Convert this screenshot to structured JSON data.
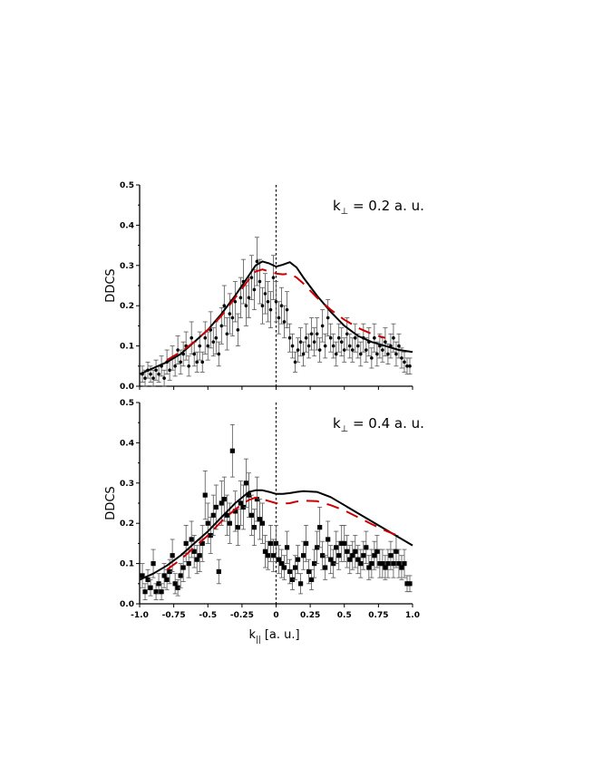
{
  "chart_data": [
    {
      "type": "scatter",
      "annotation": {
        "main": "k",
        "sub": "⊥",
        "rest": " = 0.2 a. u."
      },
      "ylabel": "DDCS",
      "xlim": [
        -1.0,
        1.0
      ],
      "ylim": [
        0.0,
        0.5
      ],
      "yticks": [
        "0.0",
        "0.1",
        "0.2",
        "0.3",
        "0.4",
        "0.5"
      ],
      "colors": {
        "experiment": "#000000",
        "solid": "#000000",
        "dashed": "#cc0000"
      },
      "series": [
        {
          "kind": "points",
          "marker": "circle",
          "x": [
            -0.98,
            -0.96,
            -0.94,
            -0.92,
            -0.9,
            -0.88,
            -0.86,
            -0.84,
            -0.82,
            -0.8,
            -0.78,
            -0.76,
            -0.74,
            -0.72,
            -0.7,
            -0.68,
            -0.66,
            -0.64,
            -0.62,
            -0.6,
            -0.58,
            -0.56,
            -0.54,
            -0.52,
            -0.5,
            -0.48,
            -0.46,
            -0.44,
            -0.42,
            -0.4,
            -0.38,
            -0.36,
            -0.34,
            -0.32,
            -0.3,
            -0.28,
            -0.26,
            -0.24,
            -0.22,
            -0.2,
            -0.18,
            -0.16,
            -0.14,
            -0.12,
            -0.1,
            -0.08,
            -0.06,
            -0.04,
            -0.02,
            0.0,
            0.02,
            0.04,
            0.06,
            0.08,
            0.1,
            0.12,
            0.14,
            0.16,
            0.18,
            0.2,
            0.22,
            0.24,
            0.26,
            0.28,
            0.3,
            0.32,
            0.34,
            0.36,
            0.38,
            0.4,
            0.42,
            0.44,
            0.46,
            0.48,
            0.5,
            0.52,
            0.54,
            0.56,
            0.58,
            0.6,
            0.62,
            0.64,
            0.66,
            0.68,
            0.7,
            0.72,
            0.74,
            0.76,
            0.78,
            0.8,
            0.82,
            0.84,
            0.86,
            0.88,
            0.9,
            0.92,
            0.94,
            0.96,
            0.98
          ],
          "y": [
            0.03,
            0.02,
            0.04,
            0.03,
            0.02,
            0.04,
            0.03,
            0.05,
            0.02,
            0.06,
            0.04,
            0.07,
            0.05,
            0.09,
            0.06,
            0.08,
            0.1,
            0.05,
            0.12,
            0.08,
            0.06,
            0.1,
            0.06,
            0.12,
            0.1,
            0.14,
            0.11,
            0.12,
            0.08,
            0.15,
            0.2,
            0.13,
            0.18,
            0.17,
            0.21,
            0.14,
            0.22,
            0.26,
            0.2,
            0.22,
            0.27,
            0.24,
            0.31,
            0.26,
            0.2,
            0.23,
            0.21,
            0.19,
            0.27,
            0.21,
            0.17,
            0.2,
            0.16,
            0.19,
            0.12,
            0.1,
            0.06,
            0.09,
            0.11,
            0.08,
            0.12,
            0.1,
            0.13,
            0.11,
            0.13,
            0.09,
            0.15,
            0.1,
            0.17,
            0.12,
            0.1,
            0.08,
            0.12,
            0.11,
            0.09,
            0.13,
            0.1,
            0.09,
            0.12,
            0.1,
            0.08,
            0.12,
            0.09,
            0.11,
            0.07,
            0.12,
            0.08,
            0.1,
            0.09,
            0.11,
            0.08,
            0.1,
            0.12,
            0.08,
            0.1,
            0.07,
            0.06,
            0.05,
            0.05
          ],
          "err": [
            0.02,
            0.02,
            0.02,
            0.02,
            0.02,
            0.025,
            0.02,
            0.025,
            0.02,
            0.03,
            0.025,
            0.03,
            0.025,
            0.035,
            0.03,
            0.03,
            0.035,
            0.025,
            0.04,
            0.03,
            0.025,
            0.035,
            0.025,
            0.04,
            0.035,
            0.045,
            0.035,
            0.04,
            0.03,
            0.045,
            0.05,
            0.04,
            0.05,
            0.045,
            0.05,
            0.04,
            0.05,
            0.055,
            0.05,
            0.05,
            0.055,
            0.05,
            0.06,
            0.055,
            0.045,
            0.05,
            0.05,
            0.045,
            0.055,
            0.05,
            0.04,
            0.045,
            0.04,
            0.045,
            0.035,
            0.03,
            0.025,
            0.03,
            0.035,
            0.03,
            0.035,
            0.03,
            0.04,
            0.035,
            0.04,
            0.03,
            0.04,
            0.03,
            0.045,
            0.035,
            0.03,
            0.03,
            0.035,
            0.035,
            0.03,
            0.04,
            0.03,
            0.03,
            0.035,
            0.03,
            0.03,
            0.035,
            0.03,
            0.035,
            0.025,
            0.035,
            0.03,
            0.03,
            0.03,
            0.035,
            0.025,
            0.03,
            0.035,
            0.03,
            0.03,
            0.025,
            0.025,
            0.02,
            0.02
          ]
        },
        {
          "kind": "line",
          "style": "solid",
          "x": [
            -1.0,
            -0.9,
            -0.8,
            -0.7,
            -0.6,
            -0.5,
            -0.4,
            -0.3,
            -0.2,
            -0.15,
            -0.1,
            -0.05,
            0.0,
            0.05,
            0.1,
            0.15,
            0.2,
            0.3,
            0.4,
            0.5,
            0.6,
            0.7,
            0.8,
            0.9,
            1.0
          ],
          "y": [
            0.03,
            0.045,
            0.06,
            0.08,
            0.11,
            0.14,
            0.18,
            0.225,
            0.275,
            0.3,
            0.31,
            0.305,
            0.297,
            0.302,
            0.308,
            0.295,
            0.27,
            0.225,
            0.185,
            0.15,
            0.125,
            0.11,
            0.1,
            0.09,
            0.085
          ]
        },
        {
          "kind": "line",
          "style": "dashed",
          "x": [
            -0.8,
            -0.7,
            -0.6,
            -0.5,
            -0.4,
            -0.3,
            -0.2,
            -0.15,
            -0.1,
            -0.05,
            0.0,
            0.05,
            0.1,
            0.15,
            0.2,
            0.3,
            0.4,
            0.5,
            0.6,
            0.7,
            0.8
          ],
          "y": [
            0.065,
            0.085,
            0.11,
            0.14,
            0.175,
            0.22,
            0.265,
            0.285,
            0.29,
            0.285,
            0.28,
            0.278,
            0.28,
            0.27,
            0.255,
            0.22,
            0.19,
            0.165,
            0.145,
            0.13,
            0.12
          ]
        }
      ]
    },
    {
      "type": "scatter",
      "annotation": {
        "main": "k",
        "sub": "⊥",
        "rest": " = 0.4 a. u."
      },
      "ylabel": "DDCS",
      "xlabel": {
        "main": "k",
        "sub": "||",
        "rest": " [a. u.]"
      },
      "xlim": [
        -1.0,
        1.0
      ],
      "ylim": [
        0.0,
        0.5
      ],
      "xticks": [
        "-1.0",
        "-0.75",
        "-0.5",
        "-0.25",
        "0",
        "0.25",
        "0.5",
        "0.75",
        "1.0"
      ],
      "yticks": [
        "0.0",
        "0.1",
        "0.2",
        "0.3",
        "0.4",
        "0.5"
      ],
      "colors": {
        "experiment": "#000000",
        "solid": "#000000",
        "dashed": "#cc0000"
      },
      "series": [
        {
          "kind": "points",
          "marker": "square",
          "x": [
            -0.98,
            -0.96,
            -0.94,
            -0.92,
            -0.9,
            -0.88,
            -0.86,
            -0.84,
            -0.82,
            -0.8,
            -0.78,
            -0.76,
            -0.74,
            -0.72,
            -0.7,
            -0.68,
            -0.66,
            -0.64,
            -0.62,
            -0.6,
            -0.58,
            -0.56,
            -0.54,
            -0.52,
            -0.5,
            -0.48,
            -0.46,
            -0.44,
            -0.42,
            -0.4,
            -0.38,
            -0.36,
            -0.34,
            -0.32,
            -0.3,
            -0.28,
            -0.26,
            -0.24,
            -0.22,
            -0.2,
            -0.18,
            -0.16,
            -0.14,
            -0.12,
            -0.1,
            -0.08,
            -0.06,
            -0.04,
            -0.02,
            0.0,
            0.02,
            0.04,
            0.06,
            0.08,
            0.1,
            0.12,
            0.14,
            0.16,
            0.18,
            0.2,
            0.22,
            0.24,
            0.26,
            0.28,
            0.3,
            0.32,
            0.34,
            0.36,
            0.38,
            0.4,
            0.42,
            0.44,
            0.46,
            0.48,
            0.5,
            0.52,
            0.54,
            0.56,
            0.58,
            0.6,
            0.62,
            0.64,
            0.66,
            0.68,
            0.7,
            0.72,
            0.74,
            0.76,
            0.78,
            0.8,
            0.82,
            0.84,
            0.86,
            0.88,
            0.9,
            0.92,
            0.94,
            0.96,
            0.98
          ],
          "y": [
            0.07,
            0.03,
            0.06,
            0.04,
            0.1,
            0.03,
            0.05,
            0.03,
            0.07,
            0.06,
            0.08,
            0.12,
            0.05,
            0.04,
            0.07,
            0.09,
            0.15,
            0.1,
            0.16,
            0.13,
            0.11,
            0.12,
            0.15,
            0.27,
            0.2,
            0.17,
            0.22,
            0.24,
            0.08,
            0.25,
            0.26,
            0.22,
            0.2,
            0.38,
            0.23,
            0.19,
            0.25,
            0.24,
            0.3,
            0.27,
            0.22,
            0.19,
            0.26,
            0.21,
            0.2,
            0.13,
            0.12,
            0.15,
            0.12,
            0.15,
            0.11,
            0.1,
            0.09,
            0.14,
            0.08,
            0.06,
            0.09,
            0.11,
            0.05,
            0.12,
            0.15,
            0.08,
            0.06,
            0.1,
            0.14,
            0.19,
            0.12,
            0.09,
            0.16,
            0.11,
            0.1,
            0.14,
            0.12,
            0.15,
            0.15,
            0.13,
            0.11,
            0.12,
            0.13,
            0.11,
            0.1,
            0.12,
            0.14,
            0.09,
            0.1,
            0.12,
            0.13,
            0.1,
            0.1,
            0.09,
            0.1,
            0.12,
            0.1,
            0.13,
            0.1,
            0.09,
            0.1,
            0.05,
            0.05
          ],
          "err": [
            0.03,
            0.02,
            0.025,
            0.02,
            0.035,
            0.02,
            0.025,
            0.02,
            0.03,
            0.025,
            0.03,
            0.04,
            0.025,
            0.02,
            0.03,
            0.035,
            0.045,
            0.035,
            0.045,
            0.04,
            0.035,
            0.04,
            0.045,
            0.06,
            0.05,
            0.045,
            0.05,
            0.055,
            0.03,
            0.055,
            0.055,
            0.05,
            0.05,
            0.065,
            0.05,
            0.045,
            0.055,
            0.055,
            0.06,
            0.055,
            0.05,
            0.045,
            0.055,
            0.05,
            0.05,
            0.04,
            0.035,
            0.045,
            0.04,
            0.045,
            0.035,
            0.035,
            0.03,
            0.04,
            0.03,
            0.025,
            0.03,
            0.035,
            0.025,
            0.035,
            0.045,
            0.03,
            0.025,
            0.035,
            0.04,
            0.05,
            0.035,
            0.03,
            0.045,
            0.035,
            0.035,
            0.04,
            0.035,
            0.045,
            0.045,
            0.04,
            0.035,
            0.035,
            0.04,
            0.035,
            0.035,
            0.035,
            0.04,
            0.03,
            0.035,
            0.035,
            0.04,
            0.035,
            0.035,
            0.03,
            0.035,
            0.035,
            0.035,
            0.04,
            0.035,
            0.03,
            0.035,
            0.02,
            0.02
          ]
        },
        {
          "kind": "line",
          "style": "solid",
          "x": [
            -1.0,
            -0.9,
            -0.8,
            -0.7,
            -0.6,
            -0.5,
            -0.4,
            -0.3,
            -0.2,
            -0.15,
            -0.1,
            -0.05,
            0.0,
            0.05,
            0.1,
            0.15,
            0.2,
            0.3,
            0.4,
            0.5,
            0.6,
            0.7,
            0.8,
            0.9,
            1.0
          ],
          "y": [
            0.06,
            0.075,
            0.095,
            0.12,
            0.15,
            0.18,
            0.215,
            0.25,
            0.278,
            0.282,
            0.282,
            0.278,
            0.273,
            0.273,
            0.275,
            0.278,
            0.28,
            0.278,
            0.265,
            0.245,
            0.225,
            0.205,
            0.185,
            0.165,
            0.145
          ]
        },
        {
          "kind": "line",
          "style": "dashed",
          "x": [
            -0.8,
            -0.7,
            -0.6,
            -0.5,
            -0.4,
            -0.3,
            -0.2,
            -0.15,
            -0.1,
            -0.05,
            0.0,
            0.05,
            0.1,
            0.15,
            0.2,
            0.3,
            0.4,
            0.5,
            0.6,
            0.7,
            0.8,
            0.9
          ],
          "y": [
            0.085,
            0.11,
            0.14,
            0.17,
            0.205,
            0.235,
            0.258,
            0.264,
            0.26,
            0.255,
            0.25,
            0.249,
            0.25,
            0.254,
            0.256,
            0.255,
            0.245,
            0.232,
            0.215,
            0.198,
            0.182,
            0.168
          ]
        }
      ]
    }
  ]
}
